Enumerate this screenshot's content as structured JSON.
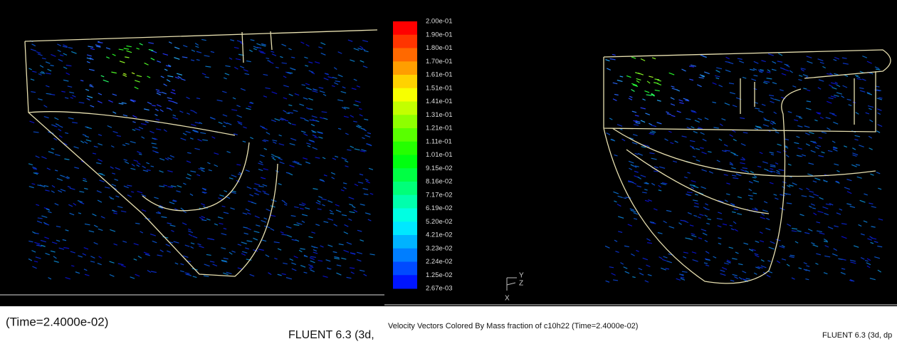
{
  "left_panel": {
    "time_label": "(Time=2.4000e-02)",
    "version_label": "FLUENT 6.3 (3d,"
  },
  "right_panel": {
    "colorbar": {
      "labels": [
        "2.00e-01",
        "1.90e-01",
        "1.80e-01",
        "1.70e-01",
        "1.61e-01",
        "1.51e-01",
        "1.41e-01",
        "1.31e-01",
        "1.21e-01",
        "1.11e-01",
        "1.01e-01",
        "9.15e-02",
        "8.16e-02",
        "7.17e-02",
        "6.19e-02",
        "5.20e-02",
        "4.21e-02",
        "3.23e-02",
        "2.24e-02",
        "1.25e-02",
        "2.67e-03"
      ]
    },
    "axes": {
      "y": "Y",
      "z": "Z",
      "x": "X"
    },
    "caption": "Velocity Vectors Colored By Mass fraction of c10h22  (Time=2.4000e-02)",
    "version_label": "FLUENT 6.3 (3d, dp"
  }
}
